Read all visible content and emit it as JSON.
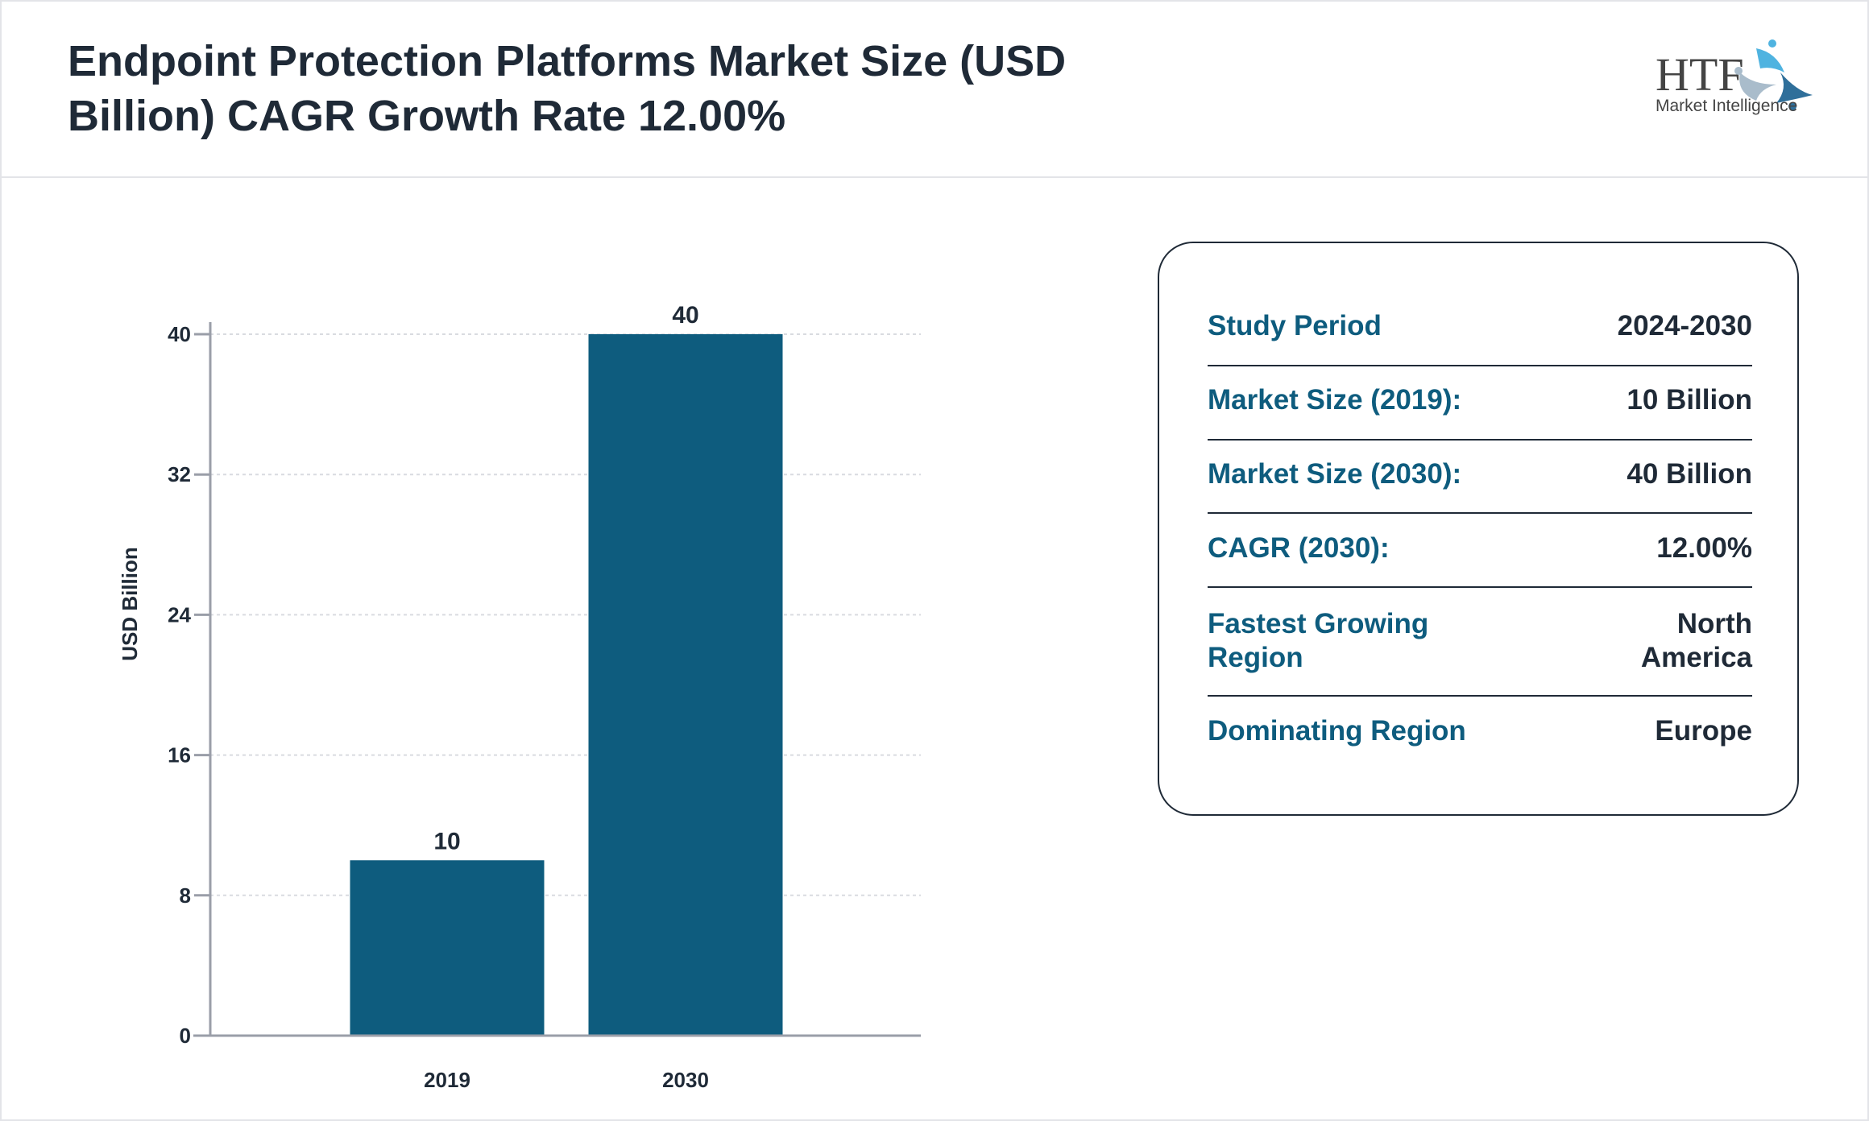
{
  "header": {
    "title": "Endpoint Protection Platforms Market Size (USD Billion) CAGR Growth Rate 12.00%",
    "logo_text": "HTF Market Intelligence"
  },
  "chart_data": {
    "type": "bar",
    "categories": [
      "2019",
      "2030"
    ],
    "values": [
      10,
      40
    ],
    "data_labels": [
      "10",
      "40"
    ],
    "title": "",
    "xlabel": "",
    "ylabel": "USD Billion",
    "ylim": [
      0,
      40
    ],
    "yticks": [
      0,
      8,
      16,
      24,
      32,
      40
    ],
    "grid": true,
    "bar_color": "#0e5c7e"
  },
  "info": {
    "rows": [
      {
        "label": "Study Period",
        "value": "2024-2030"
      },
      {
        "label": "Market Size (2019):",
        "value": "10 Billion"
      },
      {
        "label": "Market Size (2030):",
        "value": "40 Billion"
      },
      {
        "label": "CAGR (2030):",
        "value": "12.00%"
      },
      {
        "label": "Fastest Growing Region",
        "value": "North America"
      },
      {
        "label": "Dominating Region",
        "value": "Europe"
      }
    ]
  }
}
